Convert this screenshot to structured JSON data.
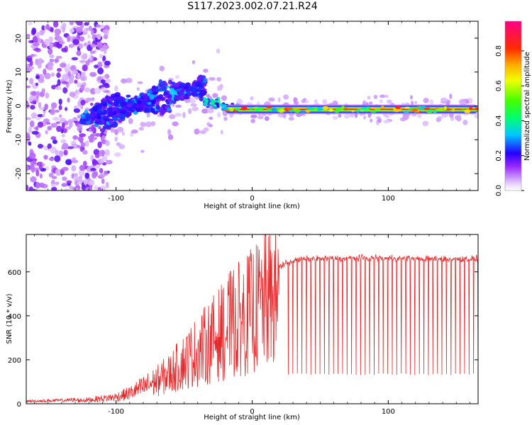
{
  "chart_data": [
    {
      "type": "heatmap",
      "title": "S117.2023.002.07.21.R24",
      "xlabel": "Height of straight line (km)",
      "ylabel": "Frequency (Hz)",
      "xlim": [
        -166,
        166
      ],
      "ylim": [
        -25,
        25
      ],
      "x_ticks": [
        -100,
        0,
        100
      ],
      "x_tick_labels": [
        "-100",
        "0",
        "100"
      ],
      "y_ticks": [
        -20,
        -10,
        0,
        10,
        20
      ],
      "y_tick_labels": [
        "-20",
        "-10",
        "0",
        "10",
        "20"
      ],
      "colorbar": {
        "label": "Normalized spectral amplitude",
        "range": [
          0,
          0.97
        ],
        "ticks": [
          0.0,
          0.2,
          0.4,
          0.6,
          0.8
        ],
        "tick_labels": [
          "0.0",
          "0.2",
          "0.4",
          "0.6",
          "0.8"
        ]
      },
      "features": [
        {
          "name": "scattered noise",
          "x_range": [
            -166,
            -105
          ],
          "freq_range": [
            -25,
            25
          ],
          "amplitude": 0.15
        },
        {
          "name": "rising chirp",
          "x_range": [
            -125,
            -35
          ],
          "freq_range": [
            -5,
            8
          ],
          "amplitude": 0.35
        },
        {
          "name": "stable tone",
          "x_range": [
            -20,
            166
          ],
          "freq_center": -1,
          "amplitude": 0.9
        }
      ]
    },
    {
      "type": "line",
      "xlabel": "Height of straight line (km)",
      "ylabel": "SNR (10 * v/v)",
      "xlim": [
        -166,
        166
      ],
      "ylim": [
        0,
        770
      ],
      "x_ticks": [
        -100,
        0,
        100
      ],
      "x_tick_labels": [
        "-100",
        "0",
        "100"
      ],
      "y_ticks": [
        0,
        200,
        400,
        600
      ],
      "y_tick_labels": [
        "0",
        "200",
        "400",
        "600"
      ],
      "color": "#e8282a",
      "series": [
        {
          "name": "SNR",
          "x": [
            -166,
            -140,
            -120,
            -100,
            -90,
            -80,
            -70,
            -60,
            -50,
            -40,
            -30,
            -20,
            -15,
            -10,
            -5,
            0,
            5,
            10,
            15,
            20,
            25,
            30,
            40,
            50,
            60,
            80,
            100,
            120,
            140,
            166
          ],
          "y": [
            12,
            15,
            22,
            38,
            60,
            95,
            130,
            175,
            240,
            300,
            360,
            420,
            460,
            480,
            500,
            530,
            555,
            580,
            600,
            625,
            640,
            652,
            658,
            660,
            660,
            662,
            662,
            660,
            658,
            660
          ]
        }
      ],
      "annotations": [
        {
          "text": "dropouts to ~130 at regular intervals",
          "x_range": [
            25,
            166
          ]
        }
      ]
    }
  ]
}
